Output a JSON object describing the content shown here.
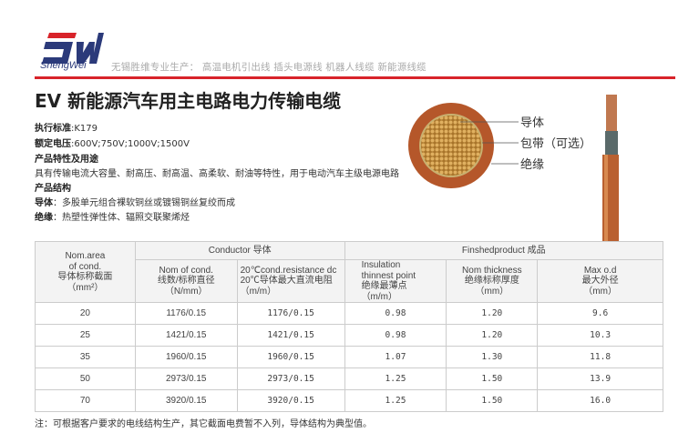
{
  "header": {
    "brand": "ShengWei",
    "logo_text": "SW",
    "slogan": "无锡胜维专业生产： 高温电机引出线  插头电源线 机器人线缆  新能源线缆",
    "accent_color": "#d8232a",
    "logo_blue": "#2b3a7a"
  },
  "title": "EV  新能源汽车用主电路电力传输电缆",
  "specs": {
    "standard_label": "执行标准",
    "standard_value": ":K179",
    "voltage_label": "额定电压",
    "voltage_value": ":600V;750V;1000V;1500V",
    "features_heading": "产品特性及用途",
    "features_text": "具有传输电流大容量、耐高压、耐高温、高柔软、耐油等特性，用于电动汽车主级电源电路",
    "structure_heading": "产品结构",
    "conductor_label": "导体",
    "conductor_value": "：多股单元组合裸软铜丝或镀锡铜丝复绞而成",
    "insulation_label": "绝缘",
    "insulation_value": "：热塑性弹性体、辐照交联聚烯烃"
  },
  "diagram": {
    "labels": [
      "导体",
      "包带（可选）",
      "绝缘"
    ]
  },
  "table": {
    "col1": [
      "Nom.area",
      "of cond.",
      "导体标称截面",
      "（mm²）"
    ],
    "group_conductor": "Conductor  导体",
    "group_finished": "Finshedproduct   成品",
    "col2": [
      "Nom of cond.",
      "线数/标称直径",
      "（N/mm）"
    ],
    "col3": [
      "20℃cond.resistance dc",
      "20℃导体最大直流电阻",
      "（m/m）"
    ],
    "col4": [
      "Insulation",
      "thinnest point",
      "绝缘最薄点",
      "（m/m）"
    ],
    "col5": [
      "Nom  thickness",
      "绝缘标称厚度",
      "（mm）"
    ],
    "col6": [
      "Max o.d",
      "最大外径",
      "（mm）"
    ],
    "rows": [
      [
        "20",
        "1176/0.15",
        "1176/0.15",
        "0.98",
        "1.20",
        "9.6"
      ],
      [
        "25",
        "1421/0.15",
        "1421/0.15",
        "0.98",
        "1.20",
        "10.3"
      ],
      [
        "35",
        "1960/0.15",
        "1960/0.15",
        "1.07",
        "1.30",
        "11.8"
      ],
      [
        "50",
        "2973/0.15",
        "2973/0.15",
        "1.25",
        "1.50",
        "13.9"
      ],
      [
        "70",
        "3920/0.15",
        "3920/0.15",
        "1.25",
        "1.50",
        "16.0"
      ]
    ]
  },
  "note": "注：可根据客户要求的电线结构生产，其它截面电费暂不入列，导体结构为典型值。"
}
